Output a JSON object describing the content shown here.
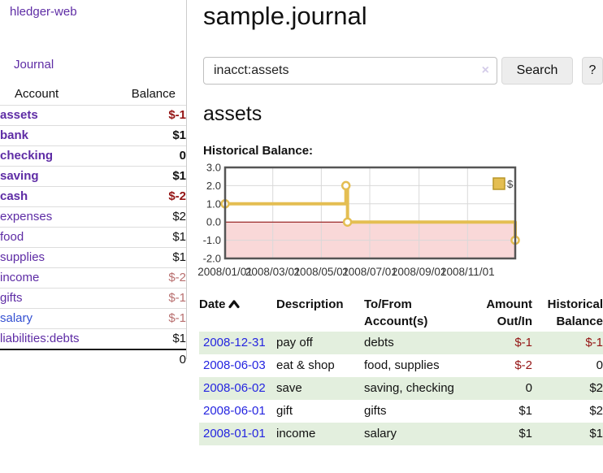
{
  "brand": "hledger-web",
  "nav": {
    "journal_label": "Journal"
  },
  "accounts": {
    "headers": [
      "Account",
      "Balance"
    ],
    "rows": [
      {
        "name": "assets",
        "balance": "$-1"
      },
      {
        "name": "bank",
        "balance": "$1"
      },
      {
        "name": "checking",
        "balance": "0"
      },
      {
        "name": "saving",
        "balance": "$1"
      },
      {
        "name": "cash",
        "balance": "$-2"
      },
      {
        "name": "expenses",
        "balance": "$2"
      },
      {
        "name": "food",
        "balance": "$1"
      },
      {
        "name": "supplies",
        "balance": "$1"
      },
      {
        "name": "income",
        "balance": "$-2"
      },
      {
        "name": "gifts",
        "balance": "$-1"
      },
      {
        "name": "salary",
        "balance": "$-1"
      },
      {
        "name": "liabilities:debts",
        "balance": "$1"
      }
    ],
    "total": "0"
  },
  "header": {
    "title": "sample.journal"
  },
  "search": {
    "value": "inacct:assets",
    "clear_icon": "×",
    "button_label": "Search",
    "help_label": "?"
  },
  "account_page": {
    "heading": "assets",
    "chart_label": "Historical Balance:"
  },
  "chart_data": {
    "type": "line",
    "title": "Historical Balance:",
    "step": true,
    "series": [
      {
        "name": "$",
        "points": [
          {
            "date": "2008-01-01",
            "day": 0,
            "value": 1
          },
          {
            "date": "2008-06-01",
            "day": 152,
            "value": 2
          },
          {
            "date": "2008-06-03",
            "day": 154,
            "value": 0
          },
          {
            "date": "2008-12-31",
            "day": 365,
            "value": -1
          }
        ]
      }
    ],
    "x_ticks": [
      {
        "day": 0,
        "label": "2008/01/01"
      },
      {
        "day": 60,
        "label": "2008/03/01"
      },
      {
        "day": 121,
        "label": "2008/05/01"
      },
      {
        "day": 182,
        "label": "2008/07/01"
      },
      {
        "day": 244,
        "label": "2008/09/01"
      },
      {
        "day": 305,
        "label": "2008/11/01"
      }
    ],
    "y_ticks": [
      {
        "value": 3,
        "label": "3.0"
      },
      {
        "value": 2,
        "label": "2.0"
      },
      {
        "value": 1,
        "label": "1.0"
      },
      {
        "value": 0,
        "label": "0.0"
      },
      {
        "value": -1,
        "label": "-1.0"
      },
      {
        "value": -2,
        "label": "-2.0"
      }
    ],
    "x_range_days": [
      0,
      365
    ],
    "ylim": [
      -2,
      3
    ],
    "grid": true,
    "legend": {
      "label": "$",
      "position": "top-right"
    }
  },
  "register": {
    "headers": [
      "Date",
      "Description",
      "To/From Account(s)",
      "Amount Out/In",
      "Historical Balance"
    ],
    "rows": [
      {
        "date": "2008-12-31",
        "description": "pay off",
        "accounts": "debts",
        "amount": "$-1",
        "balance": "$-1"
      },
      {
        "date": "2008-06-03",
        "description": "eat & shop",
        "accounts": "food, supplies",
        "amount": "$-2",
        "balance": "0"
      },
      {
        "date": "2008-06-02",
        "description": "save",
        "accounts": "saving, checking",
        "amount": "0",
        "balance": "$2"
      },
      {
        "date": "2008-06-01",
        "description": "gift",
        "accounts": "gifts",
        "amount": "$1",
        "balance": "$2"
      },
      {
        "date": "2008-01-01",
        "description": "income",
        "accounts": "salary",
        "amount": "$1",
        "balance": "$1"
      }
    ]
  },
  "colors": {
    "link_purple": "#5e2ca5",
    "link_blue": "#3450d2",
    "date_blue": "#2525e0",
    "negative_strong": "#941414",
    "negative_weak": "#b86f6f",
    "row_stripe_green": "#e3efde",
    "chart_line_gold": "#e4be52",
    "chart_negative_region": "#f9d8d8",
    "chart_zero_line": "#8b0000",
    "chart_border": "#555555",
    "grid_gray": "#d9d9d9"
  }
}
